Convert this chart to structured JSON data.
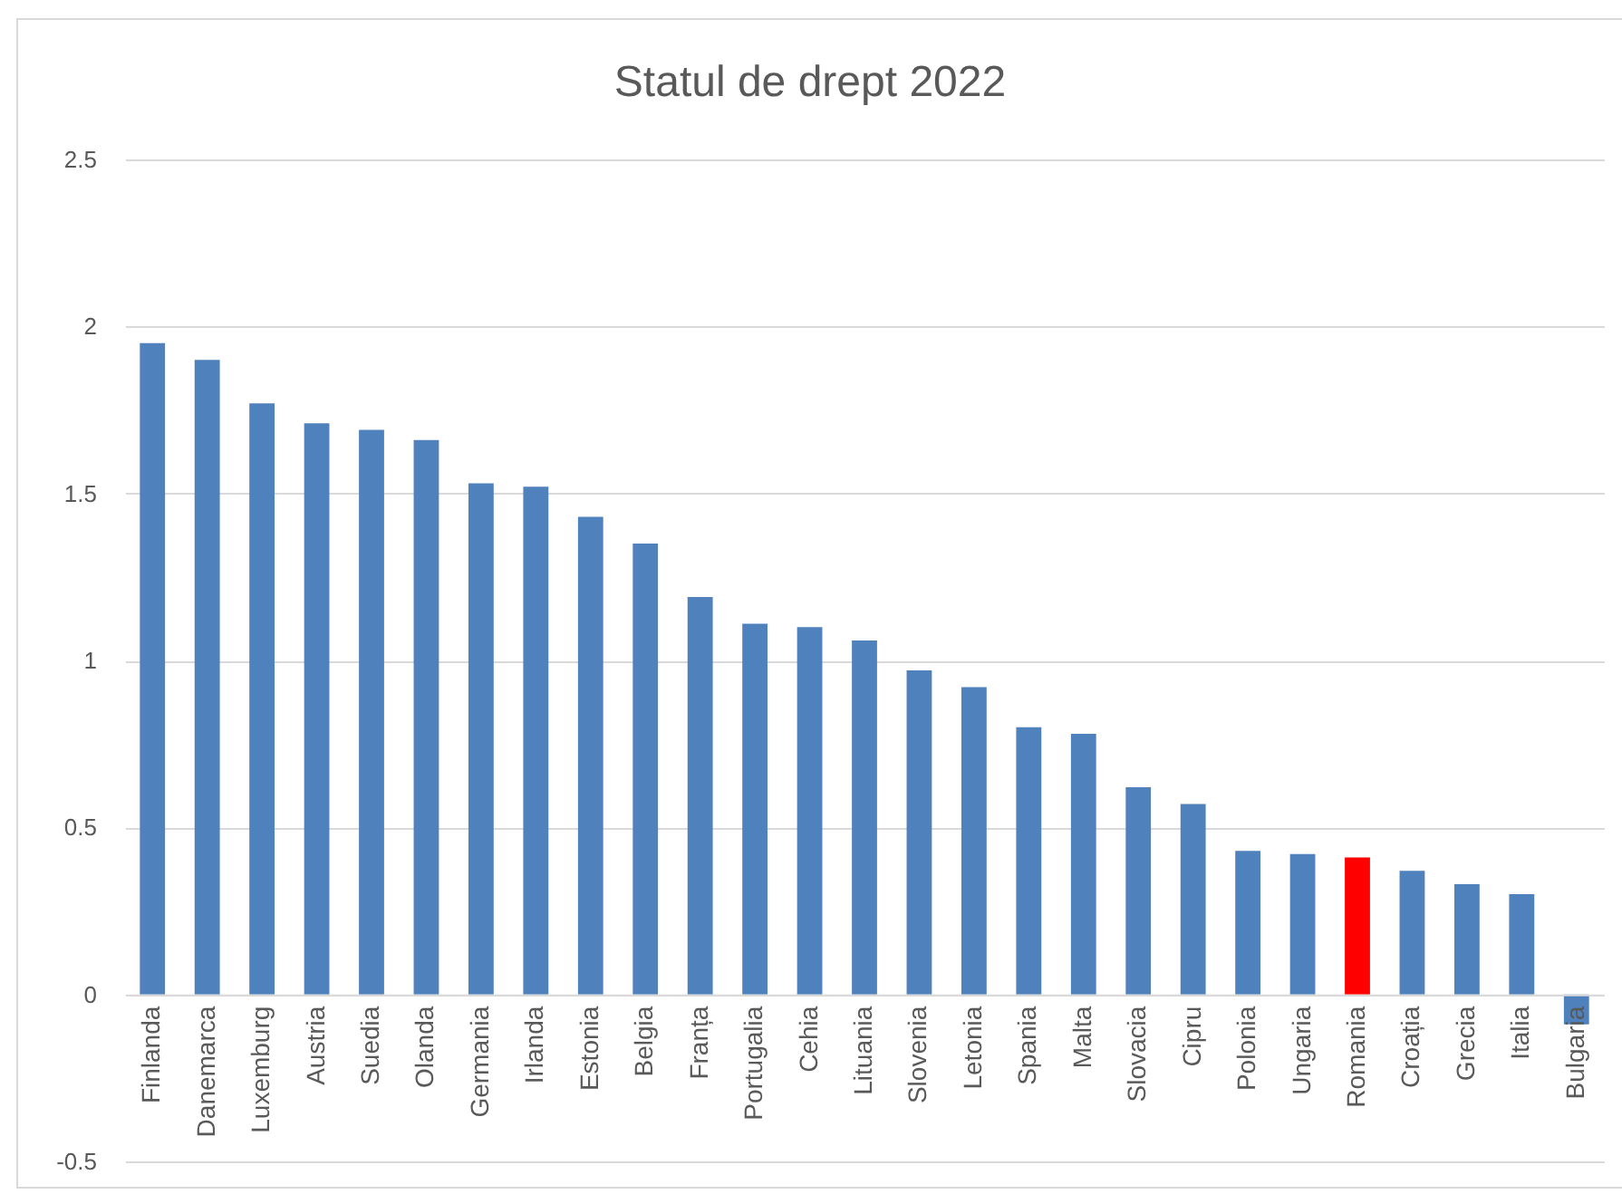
{
  "chart_data": {
    "type": "bar",
    "title": "Statul de drept 2022",
    "categories": [
      "Finlanda",
      "Danemarca",
      "Luxemburg",
      "Austria",
      "Suedia",
      "Olanda",
      "Germania",
      "Irlanda",
      "Estonia",
      "Belgia",
      "Franța",
      "Portugalia",
      "Cehia",
      "Lituania",
      "Slovenia",
      "Letonia",
      "Spania",
      "Malta",
      "Slovacia",
      "Cipru",
      "Polonia",
      "Ungaria",
      "Romania",
      "Croația",
      "Grecia",
      "Italia",
      "Bulgaria"
    ],
    "values": [
      1.95,
      1.9,
      1.77,
      1.71,
      1.69,
      1.66,
      1.53,
      1.52,
      1.43,
      1.35,
      1.19,
      1.11,
      1.1,
      1.06,
      0.97,
      0.92,
      0.8,
      0.78,
      0.62,
      0.57,
      0.43,
      0.42,
      0.41,
      0.37,
      0.33,
      0.3,
      -0.09
    ],
    "colors": [
      "#4f81bd",
      "#4f81bd",
      "#4f81bd",
      "#4f81bd",
      "#4f81bd",
      "#4f81bd",
      "#4f81bd",
      "#4f81bd",
      "#4f81bd",
      "#4f81bd",
      "#4f81bd",
      "#4f81bd",
      "#4f81bd",
      "#4f81bd",
      "#4f81bd",
      "#4f81bd",
      "#4f81bd",
      "#4f81bd",
      "#4f81bd",
      "#4f81bd",
      "#4f81bd",
      "#4f81bd",
      "#ff0000",
      "#4f81bd",
      "#4f81bd",
      "#4f81bd",
      "#4f81bd"
    ],
    "ylim": [
      -0.5,
      2.5
    ],
    "yticks": [
      -0.5,
      0,
      0.5,
      1,
      1.5,
      2,
      2.5
    ],
    "grid": "y"
  }
}
